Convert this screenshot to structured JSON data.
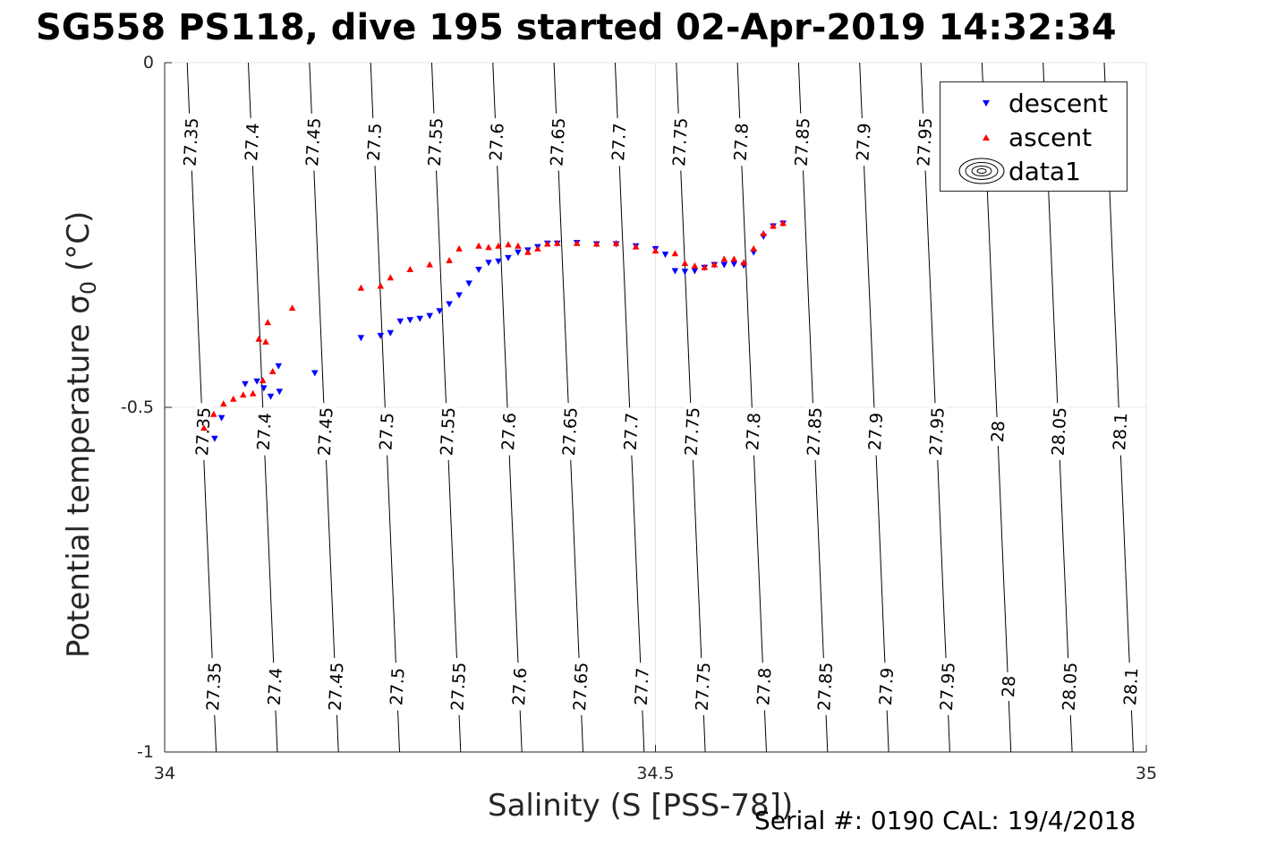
{
  "title": "SG558 PS118, dive 195 started 02-Apr-2019 14:32:34",
  "footer": "Serial #: 0190  CAL: 19/4/2018",
  "chart_data": {
    "type": "scatter",
    "xlabel": "Salinity (S [PSS-78])",
    "ylabel": "Potential temperature",
    "ylabel_symbol": "σ",
    "ylabel_subscript": "0",
    "ylabel_unit": "(°C)",
    "xlim": [
      34,
      35
    ],
    "ylim": [
      -1,
      0
    ],
    "xticks": [
      "34",
      "34.5",
      "35"
    ],
    "yticks": [
      "0",
      "-0.5",
      "-1"
    ],
    "grid": true,
    "legend": {
      "position": "top-right",
      "entries": [
        "descent",
        "ascent",
        "data1"
      ]
    },
    "colors": {
      "descent": "#0000ff",
      "ascent": "#ff0000",
      "contour": "#000000",
      "grid": "#e6e6e6",
      "axis": "#262626"
    },
    "contour_labels": [
      "27.35",
      "27.4",
      "27.45",
      "27.5",
      "27.55",
      "27.6",
      "27.65",
      "27.7",
      "27.75",
      "27.8",
      "27.85",
      "27.9",
      "27.95",
      "28",
      "28.05",
      "28.1"
    ],
    "series": [
      {
        "name": "descent",
        "marker": "triangle-down",
        "color": "#0000ff",
        "points": [
          [
            34.051,
            -0.545
          ],
          [
            34.058,
            -0.515
          ],
          [
            34.082,
            -0.466
          ],
          [
            34.094,
            -0.462
          ],
          [
            34.101,
            -0.472
          ],
          [
            34.108,
            -0.484
          ],
          [
            34.116,
            -0.44
          ],
          [
            34.117,
            -0.477
          ],
          [
            34.153,
            -0.45
          ],
          [
            34.2,
            -0.399
          ],
          [
            34.22,
            -0.396
          ],
          [
            34.23,
            -0.392
          ],
          [
            34.24,
            -0.375
          ],
          [
            34.25,
            -0.373
          ],
          [
            34.26,
            -0.371
          ],
          [
            34.27,
            -0.367
          ],
          [
            34.28,
            -0.36
          ],
          [
            34.29,
            -0.35
          ],
          [
            34.3,
            -0.337
          ],
          [
            34.31,
            -0.32
          ],
          [
            34.32,
            -0.3
          ],
          [
            34.33,
            -0.29
          ],
          [
            34.34,
            -0.288
          ],
          [
            34.35,
            -0.283
          ],
          [
            34.36,
            -0.275
          ],
          [
            34.37,
            -0.272
          ],
          [
            34.38,
            -0.267
          ],
          [
            34.39,
            -0.262
          ],
          [
            34.4,
            -0.262
          ],
          [
            34.42,
            -0.261
          ],
          [
            34.44,
            -0.263
          ],
          [
            34.46,
            -0.263
          ],
          [
            34.48,
            -0.266
          ],
          [
            34.5,
            -0.27
          ],
          [
            34.51,
            -0.278
          ],
          [
            34.52,
            -0.302
          ],
          [
            34.53,
            -0.303
          ],
          [
            34.54,
            -0.302
          ],
          [
            34.55,
            -0.297
          ],
          [
            34.56,
            -0.293
          ],
          [
            34.57,
            -0.293
          ],
          [
            34.58,
            -0.292
          ],
          [
            34.59,
            -0.294
          ],
          [
            34.6,
            -0.275
          ],
          [
            34.61,
            -0.252
          ],
          [
            34.62,
            -0.237
          ],
          [
            34.63,
            -0.233
          ]
        ]
      },
      {
        "name": "ascent",
        "marker": "triangle-up",
        "color": "#ff0000",
        "points": [
          [
            34.04,
            -0.53
          ],
          [
            34.05,
            -0.51
          ],
          [
            34.06,
            -0.495
          ],
          [
            34.07,
            -0.488
          ],
          [
            34.08,
            -0.482
          ],
          [
            34.09,
            -0.48
          ],
          [
            34.1,
            -0.461
          ],
          [
            34.11,
            -0.448
          ],
          [
            34.103,
            -0.405
          ],
          [
            34.105,
            -0.377
          ],
          [
            34.096,
            -0.401
          ],
          [
            34.13,
            -0.356
          ],
          [
            34.2,
            -0.327
          ],
          [
            34.22,
            -0.324
          ],
          [
            34.23,
            -0.312
          ],
          [
            34.25,
            -0.3
          ],
          [
            34.27,
            -0.293
          ],
          [
            34.29,
            -0.287
          ],
          [
            34.3,
            -0.27
          ],
          [
            34.32,
            -0.266
          ],
          [
            34.33,
            -0.268
          ],
          [
            34.34,
            -0.266
          ],
          [
            34.35,
            -0.264
          ],
          [
            34.36,
            -0.266
          ],
          [
            34.37,
            -0.275
          ],
          [
            34.38,
            -0.27
          ],
          [
            34.39,
            -0.263
          ],
          [
            34.4,
            -0.262
          ],
          [
            34.42,
            -0.262
          ],
          [
            34.44,
            -0.263
          ],
          [
            34.46,
            -0.262
          ],
          [
            34.48,
            -0.267
          ],
          [
            34.5,
            -0.273
          ],
          [
            34.52,
            -0.277
          ],
          [
            34.53,
            -0.291
          ],
          [
            34.54,
            -0.295
          ],
          [
            34.55,
            -0.297
          ],
          [
            34.56,
            -0.293
          ],
          [
            34.57,
            -0.285
          ],
          [
            34.58,
            -0.285
          ],
          [
            34.59,
            -0.29
          ],
          [
            34.6,
            -0.27
          ],
          [
            34.61,
            -0.248
          ],
          [
            34.62,
            -0.237
          ],
          [
            34.63,
            -0.233
          ]
        ]
      }
    ]
  }
}
